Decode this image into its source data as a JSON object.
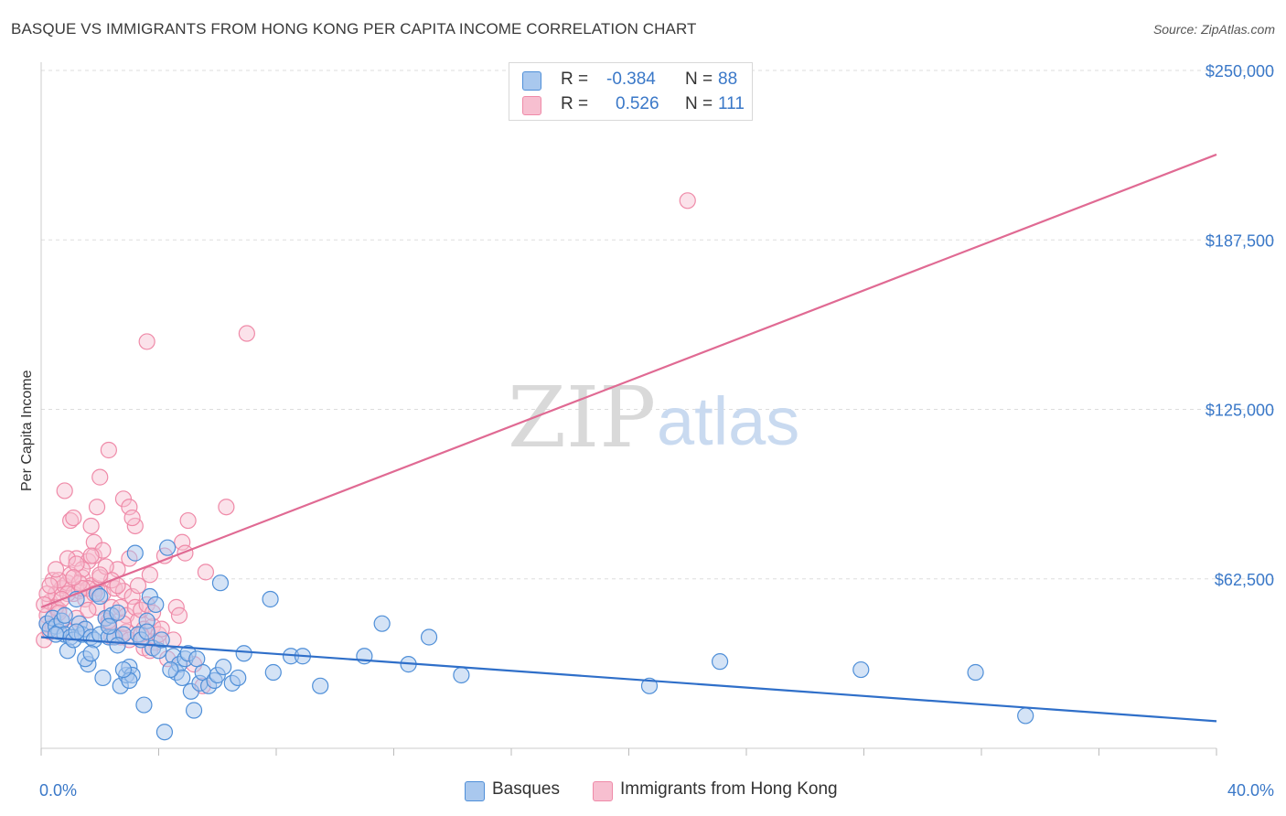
{
  "header": {
    "title": "BASQUE VS IMMIGRANTS FROM HONG KONG PER CAPITA INCOME CORRELATION CHART",
    "source": "Source: ZipAtlas.com"
  },
  "watermark": {
    "zip": "ZIP",
    "atlas": "atlas"
  },
  "legend": {
    "series": [
      {
        "r_label": "R =",
        "r_value": "-0.384",
        "n_label": "N =",
        "n_value": "88"
      },
      {
        "r_label": "R =",
        "r_value": "0.526",
        "n_label": "N =",
        "n_value": "111"
      }
    ]
  },
  "bottom_legend": {
    "items": [
      "Basques",
      "Immigrants from Hong Kong"
    ]
  },
  "colors": {
    "basques_fill": "#a9c8ee",
    "basques_stroke": "#4f8fd8",
    "basques_line": "#2f6fc9",
    "hk_fill": "#f7bfd0",
    "hk_stroke": "#ef8aa8",
    "hk_line": "#e06a93",
    "grid": "#dddddd",
    "tick_text": "#3a78c8"
  },
  "chart_data": {
    "type": "scatter",
    "title": "BASQUE VS IMMIGRANTS FROM HONG KONG PER CAPITA INCOME CORRELATION CHART",
    "xlabel": "",
    "ylabel": "Per Capita Income",
    "xlim": [
      0,
      40
    ],
    "ylim": [
      0,
      262500
    ],
    "x_tick_labels": [
      "0.0%",
      "40.0%"
    ],
    "y_ticks": [
      62500,
      125000,
      187500,
      250000
    ],
    "y_tick_labels": [
      "$62,500",
      "$125,000",
      "$187,500",
      "$250,000"
    ],
    "grid": true,
    "series": [
      {
        "name": "Basques",
        "trend": {
          "x": [
            0,
            40
          ],
          "y": [
            41000,
            10000
          ]
        },
        "points": [
          [
            0.2,
            46000
          ],
          [
            0.3,
            44000
          ],
          [
            0.4,
            48000
          ],
          [
            0.5,
            45000
          ],
          [
            0.6,
            43000
          ],
          [
            0.7,
            47000
          ],
          [
            0.8,
            42000
          ],
          [
            0.9,
            36000
          ],
          [
            1.0,
            41000
          ],
          [
            1.1,
            40000
          ],
          [
            1.2,
            55000
          ],
          [
            1.3,
            46000
          ],
          [
            1.4,
            42000
          ],
          [
            1.5,
            44000
          ],
          [
            1.6,
            31000
          ],
          [
            1.7,
            41000
          ],
          [
            1.8,
            40000
          ],
          [
            1.9,
            57000
          ],
          [
            2.0,
            42000
          ],
          [
            2.1,
            26000
          ],
          [
            2.2,
            48000
          ],
          [
            2.3,
            41000
          ],
          [
            2.4,
            49000
          ],
          [
            2.5,
            41000
          ],
          [
            2.6,
            50000
          ],
          [
            2.7,
            23000
          ],
          [
            2.8,
            42000
          ],
          [
            2.9,
            27000
          ],
          [
            3.0,
            30000
          ],
          [
            3.1,
            27000
          ],
          [
            3.2,
            72000
          ],
          [
            3.3,
            42000
          ],
          [
            3.5,
            16000
          ],
          [
            3.6,
            47000
          ],
          [
            3.7,
            56000
          ],
          [
            3.8,
            37000
          ],
          [
            3.9,
            53000
          ],
          [
            4.2,
            6000
          ],
          [
            4.3,
            74000
          ],
          [
            4.5,
            34000
          ],
          [
            4.6,
            28000
          ],
          [
            4.7,
            31000
          ],
          [
            4.8,
            26000
          ],
          [
            4.9,
            33000
          ],
          [
            5.0,
            35000
          ],
          [
            5.1,
            21000
          ],
          [
            5.2,
            14000
          ],
          [
            5.4,
            24000
          ],
          [
            5.5,
            28000
          ],
          [
            5.7,
            23000
          ],
          [
            5.9,
            25000
          ],
          [
            6.0,
            27000
          ],
          [
            6.1,
            61000
          ],
          [
            6.2,
            30000
          ],
          [
            6.5,
            24000
          ],
          [
            6.9,
            35000
          ],
          [
            7.8,
            55000
          ],
          [
            7.9,
            28000
          ],
          [
            8.5,
            34000
          ],
          [
            8.9,
            34000
          ],
          [
            9.5,
            23000
          ],
          [
            11.0,
            34000
          ],
          [
            11.6,
            46000
          ],
          [
            12.5,
            31000
          ],
          [
            13.2,
            41000
          ],
          [
            14.3,
            27000
          ],
          [
            20.7,
            23000
          ],
          [
            23.1,
            32000
          ],
          [
            27.9,
            29000
          ],
          [
            31.8,
            28000
          ],
          [
            33.5,
            12000
          ],
          [
            1.5,
            33000
          ],
          [
            2.0,
            56000
          ],
          [
            2.6,
            38000
          ],
          [
            3.0,
            25000
          ],
          [
            3.4,
            40000
          ],
          [
            4.0,
            36000
          ],
          [
            4.4,
            29000
          ],
          [
            5.3,
            33000
          ],
          [
            6.7,
            26000
          ],
          [
            0.5,
            42000
          ],
          [
            0.8,
            49000
          ],
          [
            1.2,
            43000
          ],
          [
            1.7,
            35000
          ],
          [
            2.3,
            45000
          ],
          [
            2.8,
            29000
          ],
          [
            3.6,
            43000
          ],
          [
            4.1,
            40000
          ]
        ]
      },
      {
        "name": "Immigrants from Hong Kong",
        "trend": {
          "x": [
            0,
            40
          ],
          "y": [
            52000,
            219000
          ]
        },
        "points": [
          [
            0.1,
            40000
          ],
          [
            0.2,
            49000
          ],
          [
            0.3,
            54000
          ],
          [
            0.4,
            62000
          ],
          [
            0.5,
            57000
          ],
          [
            0.6,
            51000
          ],
          [
            0.7,
            59000
          ],
          [
            0.8,
            60000
          ],
          [
            0.9,
            61000
          ],
          [
            1.0,
            64000
          ],
          [
            1.1,
            57000
          ],
          [
            1.2,
            70000
          ],
          [
            1.3,
            58000
          ],
          [
            1.4,
            63000
          ],
          [
            1.5,
            55000
          ],
          [
            1.6,
            69000
          ],
          [
            1.7,
            60000
          ],
          [
            1.8,
            71000
          ],
          [
            1.9,
            59000
          ],
          [
            2.0,
            63000
          ],
          [
            2.1,
            57000
          ],
          [
            2.2,
            48000
          ],
          [
            2.3,
            46000
          ],
          [
            2.4,
            52000
          ],
          [
            2.5,
            59000
          ],
          [
            2.6,
            66000
          ],
          [
            2.7,
            52000
          ],
          [
            2.8,
            58000
          ],
          [
            2.9,
            49000
          ],
          [
            3.0,
            70000
          ],
          [
            3.1,
            56000
          ],
          [
            3.2,
            52000
          ],
          [
            3.3,
            47000
          ],
          [
            3.4,
            51000
          ],
          [
            3.5,
            44000
          ],
          [
            3.6,
            53000
          ],
          [
            3.7,
            64000
          ],
          [
            3.8,
            45000
          ],
          [
            3.9,
            39000
          ],
          [
            4.0,
            42000
          ],
          [
            0.8,
            95000
          ],
          [
            1.0,
            84000
          ],
          [
            1.1,
            85000
          ],
          [
            1.7,
            82000
          ],
          [
            1.8,
            76000
          ],
          [
            1.9,
            89000
          ],
          [
            2.0,
            100000
          ],
          [
            2.3,
            110000
          ],
          [
            2.8,
            92000
          ],
          [
            3.0,
            89000
          ],
          [
            3.2,
            82000
          ],
          [
            3.6,
            150000
          ],
          [
            4.8,
            76000
          ],
          [
            4.9,
            72000
          ],
          [
            5.0,
            84000
          ],
          [
            5.6,
            65000
          ],
          [
            6.3,
            89000
          ],
          [
            7.0,
            153000
          ],
          [
            22.0,
            202000
          ],
          [
            0.3,
            43000
          ],
          [
            0.5,
            52000
          ],
          [
            0.7,
            47000
          ],
          [
            0.9,
            57000
          ],
          [
            1.2,
            48000
          ],
          [
            1.4,
            66000
          ],
          [
            1.6,
            59000
          ],
          [
            2.2,
            67000
          ],
          [
            2.4,
            62000
          ],
          [
            2.6,
            60000
          ],
          [
            3.1,
            85000
          ],
          [
            3.3,
            60000
          ],
          [
            3.5,
            37000
          ],
          [
            4.1,
            44000
          ],
          [
            4.3,
            33000
          ],
          [
            4.6,
            52000
          ],
          [
            5.2,
            31000
          ],
          [
            5.5,
            23000
          ],
          [
            0.2,
            57000
          ],
          [
            0.4,
            45000
          ],
          [
            0.6,
            62000
          ],
          [
            0.9,
            70000
          ],
          [
            1.3,
            61000
          ],
          [
            1.5,
            44000
          ],
          [
            1.9,
            52000
          ],
          [
            2.1,
            73000
          ],
          [
            2.7,
            41000
          ],
          [
            2.9,
            43000
          ],
          [
            3.7,
            36000
          ],
          [
            4.2,
            71000
          ],
          [
            4.5,
            40000
          ],
          [
            4.7,
            49000
          ],
          [
            0.1,
            53000
          ],
          [
            0.3,
            60000
          ],
          [
            0.5,
            66000
          ],
          [
            0.7,
            55000
          ],
          [
            1.0,
            43000
          ],
          [
            1.2,
            68000
          ],
          [
            1.4,
            59000
          ],
          [
            1.6,
            51000
          ],
          [
            1.8,
            57000
          ],
          [
            2.0,
            64000
          ],
          [
            2.4,
            41000
          ],
          [
            2.8,
            46000
          ],
          [
            3.0,
            40000
          ],
          [
            3.4,
            42000
          ],
          [
            3.8,
            50000
          ],
          [
            0.2,
            46000
          ],
          [
            0.6,
            50000
          ],
          [
            1.1,
            63000
          ],
          [
            1.7,
            71000
          ],
          [
            2.3,
            47000
          ]
        ]
      }
    ]
  }
}
